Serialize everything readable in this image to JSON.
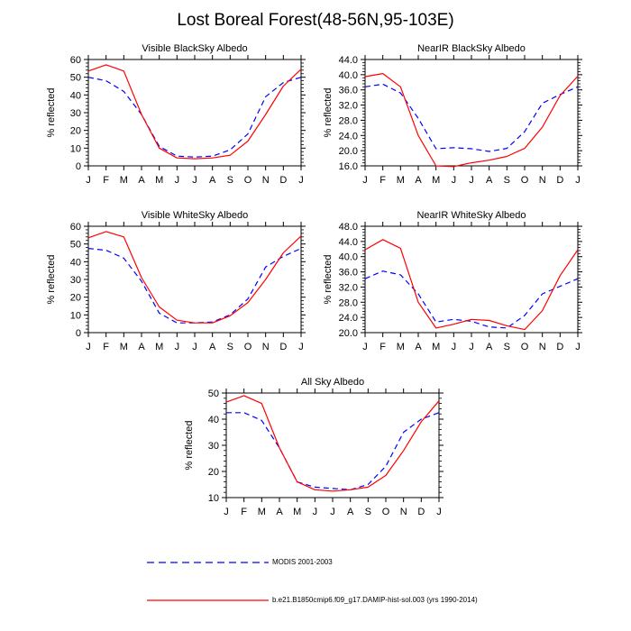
{
  "title": "Lost Boreal Forest(48-56N,95-103E)",
  "legend": {
    "entries": [
      {
        "label": "MODIS 2001-2003",
        "color": "#0000ff",
        "style": "dashed"
      },
      {
        "label": "b.e21.B1850cmip6.f09_g17.DAMIP-hist-sol.003 (yrs 1990-2014)",
        "color": "#ff0000",
        "style": "solid"
      }
    ]
  },
  "chart_data": [
    {
      "type": "line",
      "title": "Visible BlackSky Albedo",
      "ylabel": "% reflected",
      "categories": [
        "J",
        "F",
        "M",
        "A",
        "M",
        "J",
        "J",
        "A",
        "S",
        "O",
        "N",
        "D",
        "J"
      ],
      "ylim": [
        0,
        60
      ],
      "yticks": [
        "0",
        "10",
        "20",
        "30",
        "40",
        "50",
        "60"
      ],
      "series": [
        {
          "name": "MODIS 2001-2003",
          "color": "#0000ff",
          "dash": true,
          "values": [
            50,
            48,
            42,
            29,
            11,
            5.5,
            5,
            5.5,
            9,
            18,
            39,
            47,
            50
          ]
        },
        {
          "name": "b.e21.B1850cmip6.f09_g17.DAMIP-hist-sol.003 (yrs 1990-2014)",
          "color": "#ff0000",
          "dash": false,
          "values": [
            53.5,
            57,
            53.5,
            29,
            10,
            4.5,
            4,
            4.5,
            6,
            14,
            29,
            45,
            54.5
          ]
        }
      ]
    },
    {
      "type": "line",
      "title": "NearIR BlackSky Albedo",
      "ylabel": "% reflected",
      "categories": [
        "J",
        "F",
        "M",
        "A",
        "M",
        "J",
        "J",
        "A",
        "S",
        "O",
        "N",
        "D",
        "J"
      ],
      "ylim": [
        16,
        44
      ],
      "yticks": [
        "16.0",
        "20.0",
        "24.0",
        "28.0",
        "32.0",
        "36.0",
        "40.0",
        "44.0"
      ],
      "series": [
        {
          "name": "MODIS 2001-2003",
          "color": "#0000ff",
          "dash": true,
          "values": [
            36.8,
            37.5,
            35.2,
            28.5,
            20.5,
            20.8,
            20.5,
            19.8,
            20.6,
            25,
            32.5,
            34.8,
            36.8
          ]
        },
        {
          "name": "b.e21.B1850cmip6.f09_g17.DAMIP-hist-sol.003 (yrs 1990-2014)",
          "color": "#ff0000",
          "dash": false,
          "values": [
            39.5,
            40.3,
            36.8,
            24,
            16,
            15.8,
            16.8,
            17.5,
            18.5,
            20.6,
            26.2,
            34.5,
            39.6
          ]
        }
      ]
    },
    {
      "type": "line",
      "title": "Visible WhiteSky Albedo",
      "ylabel": "% reflected",
      "categories": [
        "J",
        "F",
        "M",
        "A",
        "M",
        "J",
        "J",
        "A",
        "S",
        "O",
        "N",
        "D",
        "J"
      ],
      "ylim": [
        0,
        60
      ],
      "yticks": [
        "0",
        "10",
        "20",
        "30",
        "40",
        "50",
        "60"
      ],
      "series": [
        {
          "name": "MODIS 2001-2003",
          "color": "#0000ff",
          "dash": true,
          "values": [
            47.5,
            46.5,
            42,
            29,
            11,
            5.5,
            5.5,
            6,
            10,
            19,
            37,
            43,
            47.5
          ]
        },
        {
          "name": "b.e21.B1850cmip6.f09_g17.DAMIP-hist-sol.003 (yrs 1990-2014)",
          "color": "#ff0000",
          "dash": false,
          "values": [
            53.5,
            57,
            54,
            31,
            14.5,
            7,
            5.5,
            5.5,
            9.5,
            17,
            30,
            45,
            54.5
          ]
        }
      ]
    },
    {
      "type": "line",
      "title": "NearIR WhiteSky Albedo",
      "ylabel": "% reflected",
      "categories": [
        "J",
        "F",
        "M",
        "A",
        "M",
        "J",
        "J",
        "A",
        "S",
        "O",
        "N",
        "D",
        "J"
      ],
      "ylim": [
        20,
        48
      ],
      "yticks": [
        "20.0",
        "24.0",
        "28.0",
        "32.0",
        "36.0",
        "40.0",
        "44.0",
        "48.0"
      ],
      "series": [
        {
          "name": "MODIS 2001-2003",
          "color": "#0000ff",
          "dash": true,
          "values": [
            34.2,
            36.2,
            35.2,
            30.2,
            22.8,
            23.5,
            23,
            21.5,
            21.2,
            24.5,
            30.2,
            32.2,
            34.2
          ]
        },
        {
          "name": "b.e21.B1850cmip6.f09_g17.DAMIP-hist-sol.003 (yrs 1990-2014)",
          "color": "#ff0000",
          "dash": false,
          "values": [
            41.8,
            44.5,
            42.2,
            28,
            21.2,
            22.2,
            23.5,
            23.2,
            21.8,
            20.8,
            25.8,
            35,
            41.8
          ]
        }
      ]
    },
    {
      "type": "line",
      "title": "All Sky Albedo",
      "ylabel": "% reflected",
      "categories": [
        "J",
        "F",
        "M",
        "A",
        "M",
        "J",
        "J",
        "A",
        "S",
        "O",
        "N",
        "D",
        "J"
      ],
      "ylim": [
        10,
        50
      ],
      "yticks": [
        "10",
        "20",
        "30",
        "40",
        "50"
      ],
      "series": [
        {
          "name": "MODIS 2001-2003",
          "color": "#0000ff",
          "dash": true,
          "values": [
            42.5,
            42.5,
            39.5,
            29,
            16,
            14,
            13.5,
            13,
            15,
            22,
            35,
            40,
            42.5
          ]
        },
        {
          "name": "b.e21.B1850cmip6.f09_g17.DAMIP-hist-sol.003 (yrs 1990-2014)",
          "color": "#ff0000",
          "dash": false,
          "values": [
            46.5,
            49,
            46,
            29,
            16,
            13,
            12.5,
            13,
            14,
            18.5,
            28,
            39,
            47
          ]
        }
      ]
    }
  ]
}
